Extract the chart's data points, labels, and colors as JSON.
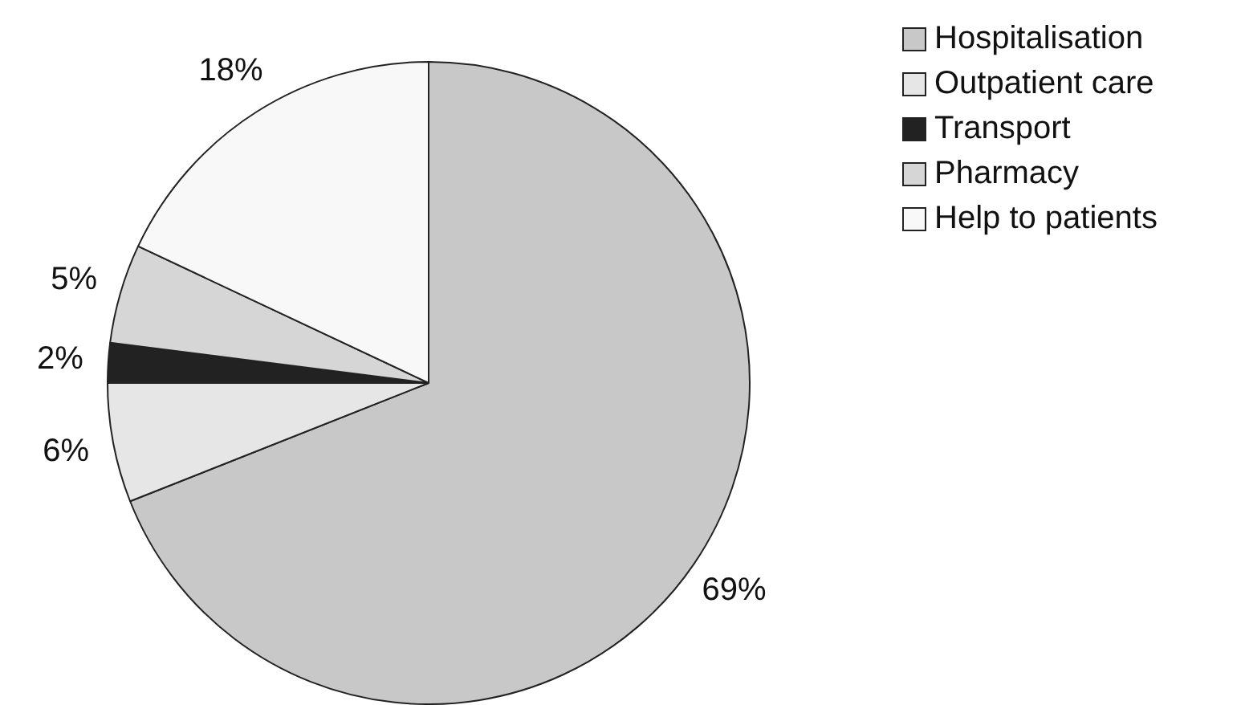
{
  "chart_data": {
    "type": "pie",
    "categories": [
      "Hospitalisation",
      "Outpatient care",
      "Transport",
      "Pharmacy",
      "Help to patients"
    ],
    "values": [
      69,
      6,
      2,
      5,
      18
    ],
    "colors": [
      "#c8c8c8",
      "#e6e6e6",
      "#222222",
      "#d6d6d6",
      "#f8f8f8"
    ],
    "value_labels": [
      "69%",
      "6%",
      "2%",
      "5%",
      "18%"
    ],
    "legend": "top right"
  }
}
